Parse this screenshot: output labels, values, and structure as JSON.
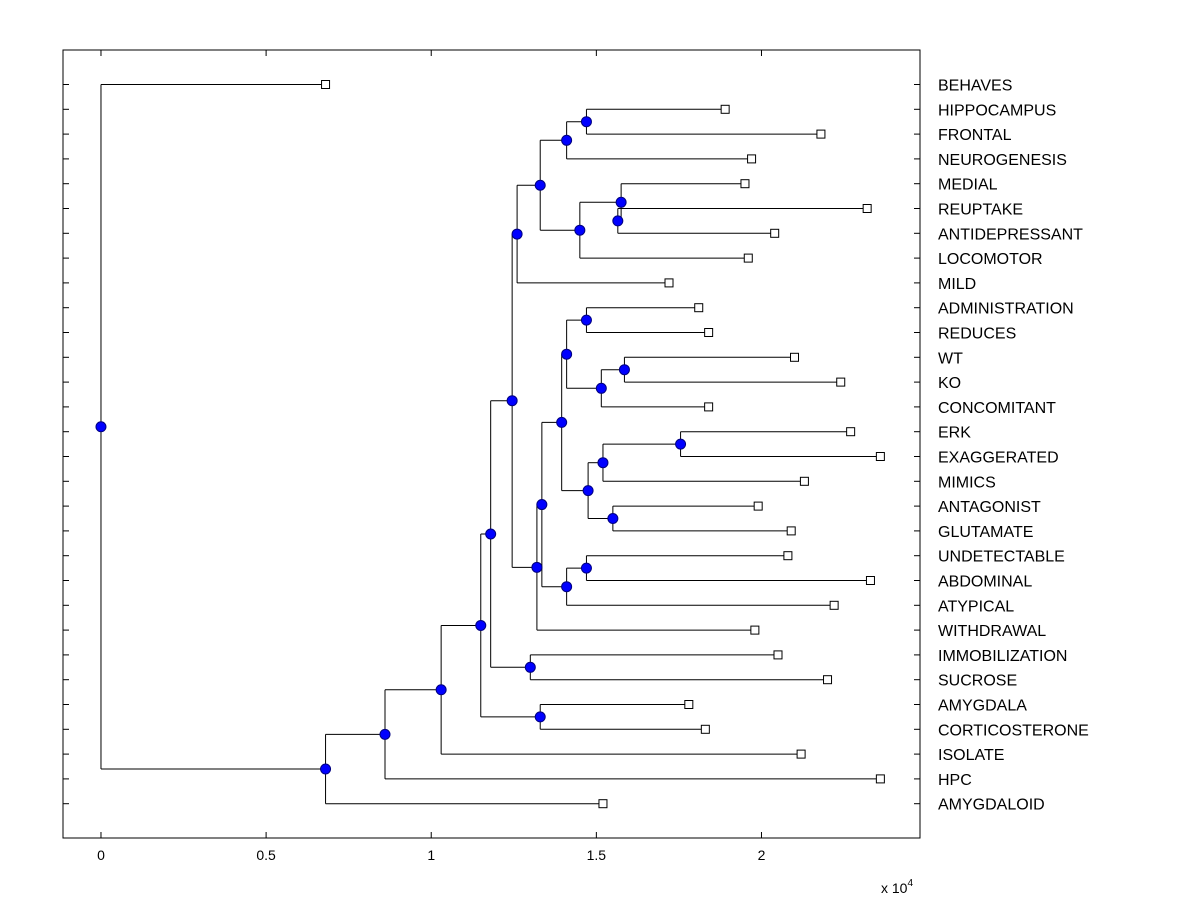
{
  "chart_data": {
    "type": "dendrogram",
    "orientation": "horizontal",
    "title": "",
    "xlabel": "",
    "ylabel": "",
    "xlim": [
      -0.115,
      2.48
    ],
    "x_ticks": [
      0,
      0.5,
      1,
      1.5,
      2
    ],
    "x_tick_labels": [
      "0",
      "0.5",
      "1",
      "1.5",
      "2"
    ],
    "x_scale_prefix": "x 10",
    "x_scale_exponent": "4",
    "colors": {
      "node": "#0000ff",
      "node_edge": "#000080",
      "line": "#000000",
      "leaf_marker_fill": "#ffffff"
    },
    "leaves": [
      {
        "label": "BEHAVES",
        "x": 0.68
      },
      {
        "label": "HIPPOCAMPUS",
        "x": 1.89
      },
      {
        "label": "FRONTAL",
        "x": 2.18
      },
      {
        "label": "NEUROGENESIS",
        "x": 1.97
      },
      {
        "label": "MEDIAL",
        "x": 1.95
      },
      {
        "label": "REUPTAKE",
        "x": 2.32
      },
      {
        "label": "ANTIDEPRESSANT",
        "x": 2.04
      },
      {
        "label": "LOCOMOTOR",
        "x": 1.96
      },
      {
        "label": "MILD",
        "x": 1.72
      },
      {
        "label": "ADMINISTRATION",
        "x": 1.81
      },
      {
        "label": "REDUCES",
        "x": 1.84
      },
      {
        "label": "WT",
        "x": 2.1
      },
      {
        "label": "KO",
        "x": 2.24
      },
      {
        "label": "CONCOMITANT",
        "x": 1.84
      },
      {
        "label": "ERK",
        "x": 2.27
      },
      {
        "label": "EXAGGERATED",
        "x": 2.36
      },
      {
        "label": "MIMICS",
        "x": 2.13
      },
      {
        "label": "ANTAGONIST",
        "x": 1.99
      },
      {
        "label": "GLUTAMATE",
        "x": 2.09
      },
      {
        "label": "UNDETECTABLE",
        "x": 2.08
      },
      {
        "label": "ABDOMINAL",
        "x": 2.33
      },
      {
        "label": "ATYPICAL",
        "x": 2.22
      },
      {
        "label": "WITHDRAWAL",
        "x": 1.98
      },
      {
        "label": "IMMOBILIZATION",
        "x": 2.05
      },
      {
        "label": "SUCROSE",
        "x": 2.2
      },
      {
        "label": "AMYGDALA",
        "x": 1.78
      },
      {
        "label": "CORTICOSTERONE",
        "x": 1.83
      },
      {
        "label": "ISOLATE",
        "x": 2.12
      },
      {
        "label": "HPC",
        "x": 2.36
      },
      {
        "label": "AMYGDALOID",
        "x": 1.52
      }
    ],
    "nodes": [
      {
        "id": "n_hip_fro",
        "x": 1.47,
        "children": [
          "HIPPOCAMPUS",
          "FRONTAL"
        ]
      },
      {
        "id": "n_hfn",
        "x": 1.41,
        "children": [
          "n_hip_fro",
          "NEUROGENESIS"
        ]
      },
      {
        "id": "n_med",
        "x": 1.575,
        "children": [
          "MEDIAL",
          "n_reu_ant"
        ]
      },
      {
        "id": "n_reu_ant",
        "x": 1.565,
        "children": [
          "REUPTAKE",
          "ANTIDEPRESSANT"
        ]
      },
      {
        "id": "n_medloc",
        "x": 1.45,
        "children": [
          "n_med",
          "LOCOMOTOR"
        ]
      },
      {
        "id": "n_top8",
        "x": 1.33,
        "children": [
          "n_hfn",
          "n_medloc"
        ]
      },
      {
        "id": "n_top9",
        "x": 1.26,
        "children": [
          "n_top8",
          "MILD"
        ]
      },
      {
        "id": "n_adm_red",
        "x": 1.47,
        "children": [
          "ADMINISTRATION",
          "REDUCES"
        ]
      },
      {
        "id": "n_wt_ko",
        "x": 1.585,
        "children": [
          "WT",
          "KO"
        ]
      },
      {
        "id": "n_wkc",
        "x": 1.515,
        "children": [
          "n_wt_ko",
          "CONCOMITANT"
        ]
      },
      {
        "id": "n_arwkc",
        "x": 1.41,
        "children": [
          "n_adm_red",
          "n_wkc"
        ]
      },
      {
        "id": "n_erk_exa",
        "x": 1.755,
        "children": [
          "ERK",
          "EXAGGERATED"
        ]
      },
      {
        "id": "n_eem",
        "x": 1.52,
        "children": [
          "n_erk_exa",
          "MIMICS"
        ]
      },
      {
        "id": "n_ant_glu",
        "x": 1.55,
        "children": [
          "ANTAGONIST",
          "GLUTAMATE"
        ]
      },
      {
        "id": "n_eemag",
        "x": 1.475,
        "children": [
          "n_eem",
          "n_ant_glu"
        ]
      },
      {
        "id": "n_mid10",
        "x": 1.395,
        "children": [
          "n_arwkc",
          "n_eemag"
        ]
      },
      {
        "id": "n_und_abd",
        "x": 1.47,
        "children": [
          "UNDETECTABLE",
          "ABDOMINAL"
        ]
      },
      {
        "id": "n_uaa",
        "x": 1.41,
        "children": [
          "n_und_abd",
          "ATYPICAL"
        ]
      },
      {
        "id": "n_mid13",
        "x": 1.335,
        "children": [
          "n_mid10",
          "n_uaa"
        ]
      },
      {
        "id": "n_mid14",
        "x": 1.32,
        "children": [
          "n_mid13",
          "WITHDRAWAL"
        ]
      },
      {
        "id": "n_top23",
        "x": 1.245,
        "children": [
          "n_top9",
          "n_mid14"
        ]
      },
      {
        "id": "n_imm_suc",
        "x": 1.3,
        "children": [
          "IMMOBILIZATION",
          "SUCROSE"
        ]
      },
      {
        "id": "n_top25",
        "x": 1.18,
        "children": [
          "n_top23",
          "n_imm_suc"
        ]
      },
      {
        "id": "n_amy_cor",
        "x": 1.33,
        "children": [
          "AMYGDALA",
          "CORTICOSTERONE"
        ]
      },
      {
        "id": "n_top27",
        "x": 1.15,
        "children": [
          "n_top25",
          "n_amy_cor"
        ]
      },
      {
        "id": "n_top28",
        "x": 1.03,
        "children": [
          "n_top27",
          "ISOLATE"
        ]
      },
      {
        "id": "n_top29",
        "x": 0.86,
        "children": [
          "n_top28",
          "HPC"
        ]
      },
      {
        "id": "n_top30",
        "x": 0.68,
        "children": [
          "n_top29",
          "AMYGDALOID"
        ]
      },
      {
        "id": "n_root",
        "x": 0.0,
        "children": [
          "BEHAVES",
          "n_top30"
        ]
      }
    ]
  }
}
